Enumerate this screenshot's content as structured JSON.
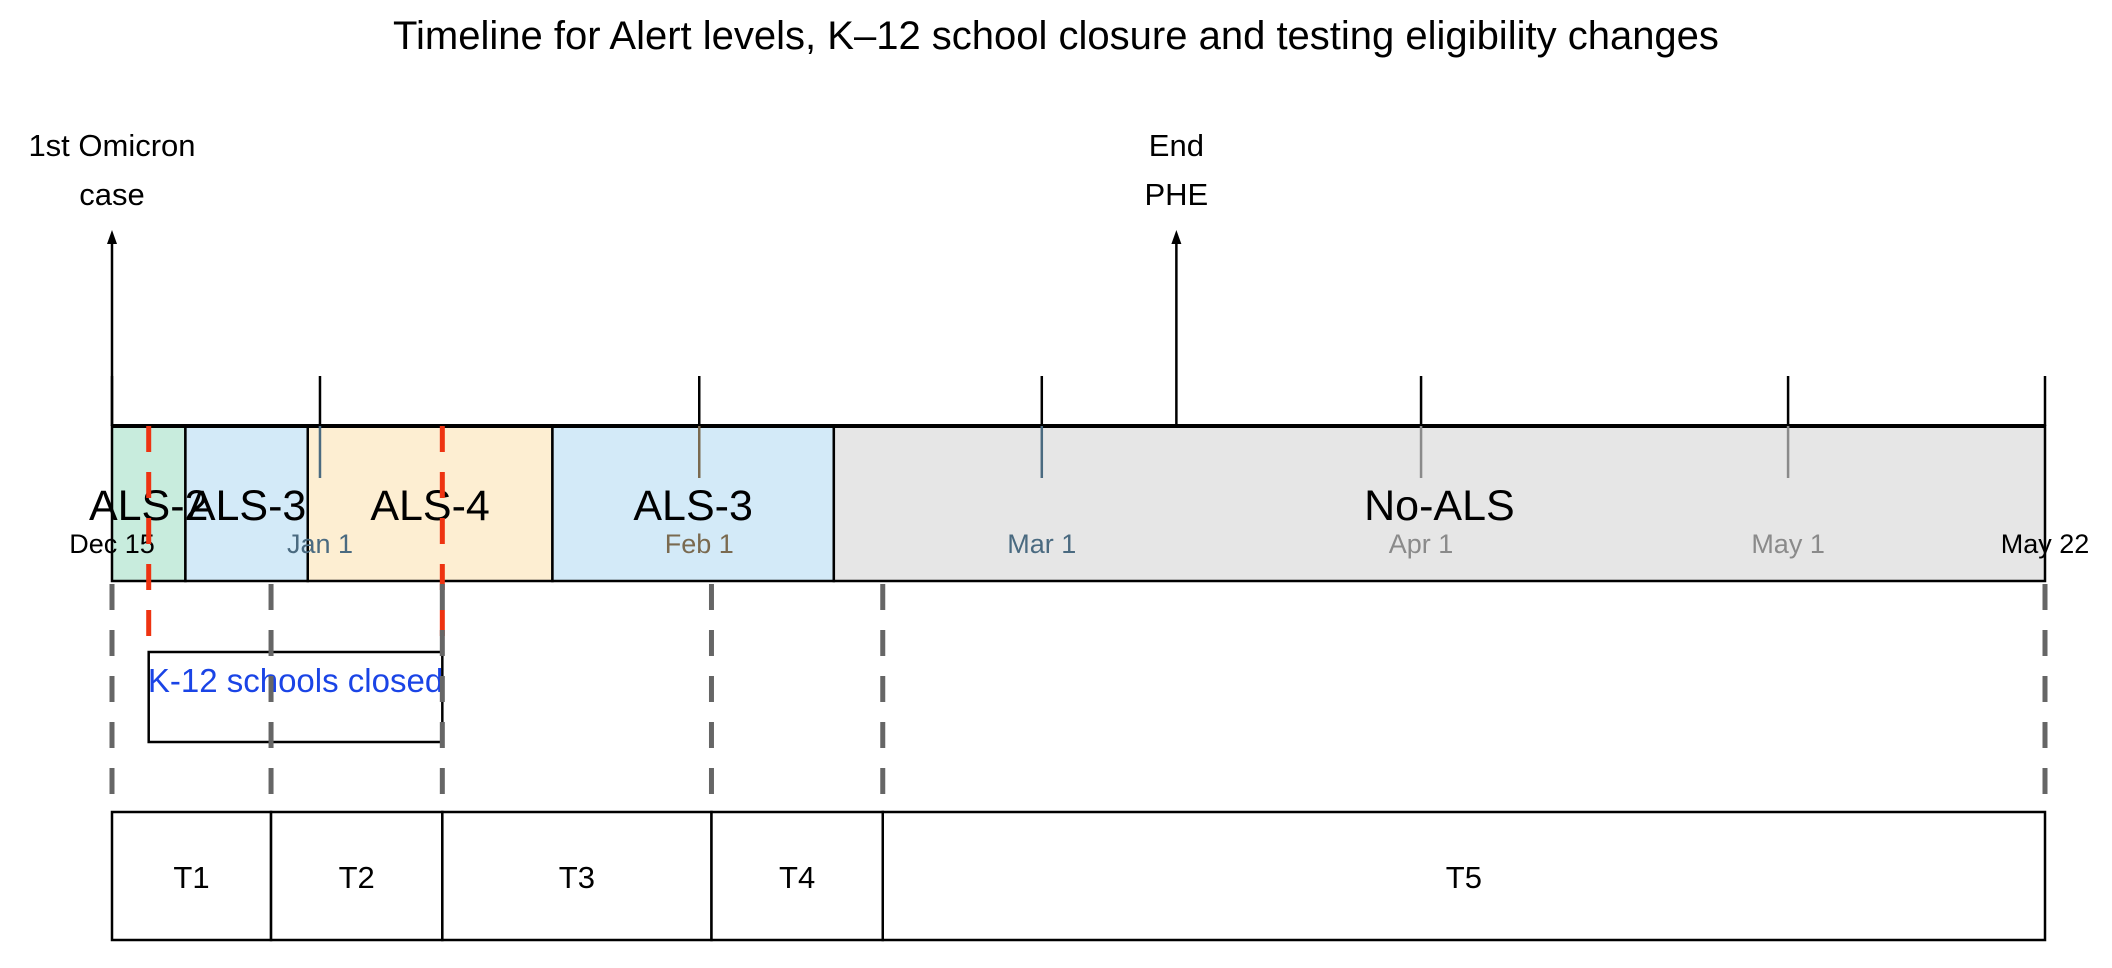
{
  "title": "Timeline for Alert levels, K–12 school closure and testing eligibility changes",
  "timeline": {
    "start": "2021-12-15",
    "end": "2022-05-22"
  },
  "events": [
    {
      "id": "omicron",
      "date": "2021-12-15",
      "lines": [
        "1st Omicron",
        "case"
      ]
    },
    {
      "id": "phe",
      "date": "2022-03-12",
      "lines": [
        "End",
        "PHE"
      ]
    }
  ],
  "alert_levels": [
    {
      "label": "ALS-2",
      "start": "2021-12-15",
      "end": "2021-12-21",
      "color": "#c8ecdd"
    },
    {
      "label": "ALS-3",
      "start": "2021-12-21",
      "end": "2021-12-31",
      "color": "#d3eaf8"
    },
    {
      "label": "ALS-4",
      "start": "2021-12-31",
      "end": "2022-01-20",
      "color": "#fdeed2"
    },
    {
      "label": "ALS-3",
      "start": "2022-01-20",
      "end": "2022-02-12",
      "color": "#d3eaf8"
    },
    {
      "label": "No-ALS",
      "start": "2022-02-12",
      "end": "2022-05-22",
      "color": "#e6e6e6"
    }
  ],
  "ticks": [
    {
      "label": "Dec 15",
      "date": "2021-12-15",
      "color": "#000000"
    },
    {
      "label": "Jan 1",
      "date": "2022-01-01",
      "color": "#4a6a80"
    },
    {
      "label": "Feb 1",
      "date": "2022-02-01",
      "color": "#7a6a50"
    },
    {
      "label": "Mar 1",
      "date": "2022-03-01",
      "color": "#4a6a80"
    },
    {
      "label": "Apr 1",
      "date": "2022-04-01",
      "color": "#8a8a8a"
    },
    {
      "label": "May 1",
      "date": "2022-05-01",
      "color": "#8a8a8a"
    },
    {
      "label": "May 22",
      "date": "2022-05-22",
      "color": "#000000"
    }
  ],
  "school_closure": {
    "label": "K-12 schools closed",
    "start": "2021-12-18",
    "end": "2022-01-11",
    "text_color": "#1a44e6",
    "line_color": "#ee3311"
  },
  "testing_periods": [
    {
      "label": "T1",
      "start": "2021-12-15",
      "end": "2021-12-28"
    },
    {
      "label": "T2",
      "start": "2021-12-28",
      "end": "2022-01-11"
    },
    {
      "label": "T3",
      "start": "2022-01-11",
      "end": "2022-02-02"
    },
    {
      "label": "T4",
      "start": "2022-02-02",
      "end": "2022-02-16"
    },
    {
      "label": "T5",
      "start": "2022-02-16",
      "end": "2022-05-22"
    }
  ],
  "colors": {
    "dashed_divider": "#666666",
    "outline": "#000000"
  }
}
